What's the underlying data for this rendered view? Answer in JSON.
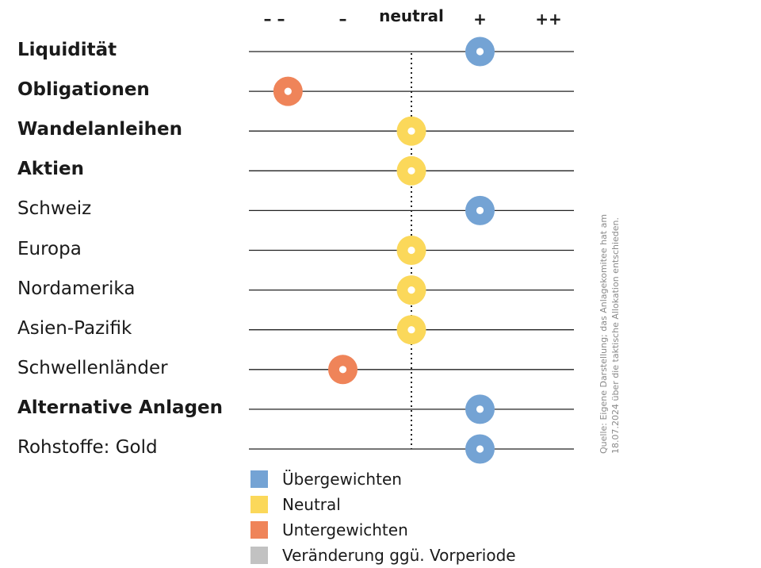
{
  "chart_data": {
    "type": "scatter",
    "title": "",
    "scale_levels": [
      "– –",
      "–",
      "neutral",
      "+",
      "++"
    ],
    "neutral_level": 2,
    "categories": [
      {
        "label": "Liquidität",
        "bold": true,
        "position": 3,
        "status": "overweight"
      },
      {
        "label": "Obligationen",
        "bold": true,
        "position": 0.2,
        "status": "underweight"
      },
      {
        "label": "Wandelanleihen",
        "bold": true,
        "position": 2,
        "status": "neutral"
      },
      {
        "label": "Aktien",
        "bold": true,
        "position": 2,
        "status": "neutral"
      },
      {
        "label": "Schweiz",
        "bold": false,
        "position": 3,
        "status": "overweight"
      },
      {
        "label": "Europa",
        "bold": false,
        "position": 2,
        "status": "neutral"
      },
      {
        "label": "Nordamerika",
        "bold": false,
        "position": 2,
        "status": "neutral"
      },
      {
        "label": "Asien-Pazifik",
        "bold": false,
        "position": 2,
        "status": "neutral"
      },
      {
        "label": "Schwellenländer",
        "bold": false,
        "position": 1,
        "status": "underweight"
      },
      {
        "label": "Alternative Anlagen",
        "bold": true,
        "position": 3,
        "status": "overweight"
      },
      {
        "label": "Rohstoffe: Gold",
        "bold": false,
        "position": 3,
        "status": "overweight"
      }
    ],
    "legend": [
      {
        "key": "overweight",
        "label": "Übergewichten",
        "color": "#74a3d4"
      },
      {
        "key": "neutral",
        "label": "Neutral",
        "color": "#fbd85a"
      },
      {
        "key": "underweight",
        "label": "Untergewichten",
        "color": "#ef8459"
      },
      {
        "key": "change",
        "label": "Veränderung ggü. Vorperiode",
        "color": "#c2c2c2"
      }
    ],
    "source": "Quelle: Eigene Darstellung; das Anlagekomitee hat am 18.07.2024 über die taktische Allokation entschieden."
  }
}
